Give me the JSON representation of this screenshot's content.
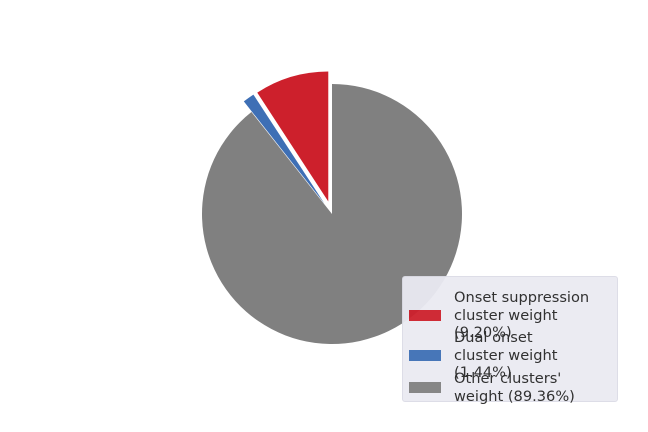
{
  "chart_data": {
    "type": "pie",
    "title": "",
    "slices": [
      {
        "label": "Onset suppression\ncluster weight (9.20%)",
        "value": 9.2,
        "color": "#cd202c",
        "explode": true
      },
      {
        "label": "Dual onset\ncluster weight (1.44%)",
        "value": 1.44,
        "color": "#3e6fb5",
        "explode": true
      },
      {
        "label": "Other clusters'\nweight (89.36%)",
        "value": 89.36,
        "color": "#808080",
        "explode": false
      }
    ],
    "start_angle_deg": 90,
    "direction": "counterclockwise",
    "legend_position": "lower-right"
  }
}
